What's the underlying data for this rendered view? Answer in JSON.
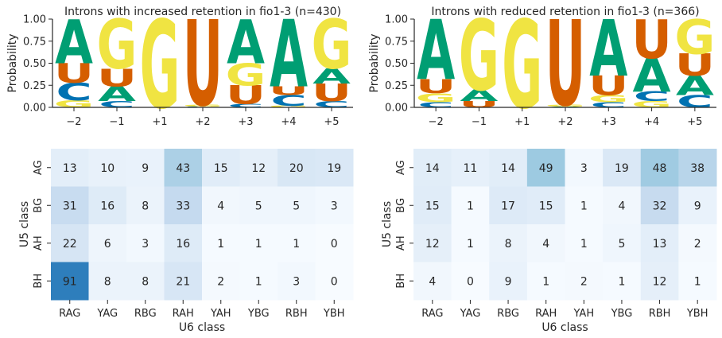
{
  "chart_data": [
    {
      "type": "sequence-logo",
      "title": "Introns with increased retention in fio1-3 (n=430)",
      "ylabel": "Probability",
      "ylim": [
        0,
        1
      ],
      "yticks": [
        "0.00",
        "0.25",
        "0.50",
        "0.75",
        "1.00"
      ],
      "positions": [
        "−2",
        "−1",
        "+1",
        "+2",
        "+3",
        "+4",
        "+5"
      ],
      "colors": {
        "A": "#009e73",
        "C": "#0072b2",
        "G": "#f0e442",
        "U": "#d55e00"
      },
      "stacks": [
        [
          {
            "l": "G",
            "p": 0.08
          },
          {
            "l": "C",
            "p": 0.2
          },
          {
            "l": "U",
            "p": 0.22
          },
          {
            "l": "A",
            "p": 0.5
          }
        ],
        [
          {
            "l": "C",
            "p": 0.07
          },
          {
            "l": "A",
            "p": 0.17
          },
          {
            "l": "U",
            "p": 0.2
          },
          {
            "l": "G",
            "p": 0.56
          }
        ],
        [
          {
            "l": "G",
            "p": 1.0
          }
        ],
        [
          {
            "l": "C",
            "p": 0.01
          },
          {
            "l": "G",
            "p": 0.02
          },
          {
            "l": "U",
            "p": 0.97
          }
        ],
        [
          {
            "l": "C",
            "p": 0.04
          },
          {
            "l": "U",
            "p": 0.21
          },
          {
            "l": "G",
            "p": 0.25
          },
          {
            "l": "A",
            "p": 0.5
          }
        ],
        [
          {
            "l": "G",
            "p": 0.02
          },
          {
            "l": "C",
            "p": 0.12
          },
          {
            "l": "U",
            "p": 0.1
          },
          {
            "l": "A",
            "p": 0.76
          }
        ],
        [
          {
            "l": "C",
            "p": 0.07
          },
          {
            "l": "U",
            "p": 0.2
          },
          {
            "l": "A",
            "p": 0.17
          },
          {
            "l": "G",
            "p": 0.56
          }
        ]
      ]
    },
    {
      "type": "sequence-logo",
      "title": "Introns with reduced retention in fio1-3 (n=366)",
      "ylabel": "Probability",
      "ylim": [
        0,
        1
      ],
      "yticks": [
        "0.00",
        "0.25",
        "0.50",
        "0.75",
        "1.00"
      ],
      "positions": [
        "−2",
        "−1",
        "+1",
        "+2",
        "+3",
        "+4",
        "+5"
      ],
      "colors": {
        "A": "#009e73",
        "C": "#0072b2",
        "G": "#f0e442",
        "U": "#d55e00"
      },
      "stacks": [
        [
          {
            "l": "C",
            "p": 0.06
          },
          {
            "l": "G",
            "p": 0.1
          },
          {
            "l": "U",
            "p": 0.16
          },
          {
            "l": "A",
            "p": 0.68
          }
        ],
        [
          {
            "l": "U",
            "p": 0.07
          },
          {
            "l": "A",
            "p": 0.13
          },
          {
            "l": "G",
            "p": 0.8
          }
        ],
        [
          {
            "l": "G",
            "p": 1.0
          }
        ],
        [
          {
            "l": "A",
            "p": 0.01
          },
          {
            "l": "G",
            "p": 0.02
          },
          {
            "l": "U",
            "p": 0.97
          }
        ],
        [
          {
            "l": "C",
            "p": 0.06
          },
          {
            "l": "G",
            "p": 0.08
          },
          {
            "l": "U",
            "p": 0.22
          },
          {
            "l": "A",
            "p": 0.64
          }
        ],
        [
          {
            "l": "G",
            "p": 0.07
          },
          {
            "l": "C",
            "p": 0.11
          },
          {
            "l": "A",
            "p": 0.38
          },
          {
            "l": "U",
            "p": 0.44
          }
        ],
        [
          {
            "l": "C",
            "p": 0.14
          },
          {
            "l": "A",
            "p": 0.22
          },
          {
            "l": "U",
            "p": 0.25
          },
          {
            "l": "G",
            "p": 0.39
          }
        ]
      ]
    },
    {
      "type": "heatmap",
      "xlabel": "U6 class",
      "ylabel": "U5 class",
      "x": [
        "RAG",
        "YAG",
        "RBG",
        "RAH",
        "YAH",
        "YBG",
        "RBH",
        "YBH"
      ],
      "y": [
        "AG",
        "BG",
        "AH",
        "BH"
      ],
      "values": [
        [
          13,
          10,
          9,
          43,
          15,
          12,
          20,
          19
        ],
        [
          31,
          16,
          8,
          33,
          4,
          5,
          5,
          3
        ],
        [
          22,
          6,
          3,
          16,
          1,
          1,
          1,
          0
        ],
        [
          91,
          8,
          8,
          21,
          2,
          1,
          3,
          0
        ]
      ],
      "vmax": 130,
      "colormap": "Blues"
    },
    {
      "type": "heatmap",
      "xlabel": "U6 class",
      "ylabel": "U5 class",
      "x": [
        "RAG",
        "YAG",
        "RBG",
        "RAH",
        "YAH",
        "YBG",
        "RBH",
        "YBH"
      ],
      "y": [
        "AG",
        "BG",
        "AH",
        "BH"
      ],
      "values": [
        [
          14,
          11,
          14,
          49,
          3,
          19,
          48,
          38
        ],
        [
          15,
          1,
          17,
          15,
          1,
          4,
          32,
          9
        ],
        [
          12,
          1,
          8,
          4,
          1,
          5,
          13,
          2
        ],
        [
          4,
          0,
          9,
          1,
          2,
          1,
          12,
          1
        ]
      ],
      "vmax": 130,
      "colormap": "Blues"
    }
  ]
}
